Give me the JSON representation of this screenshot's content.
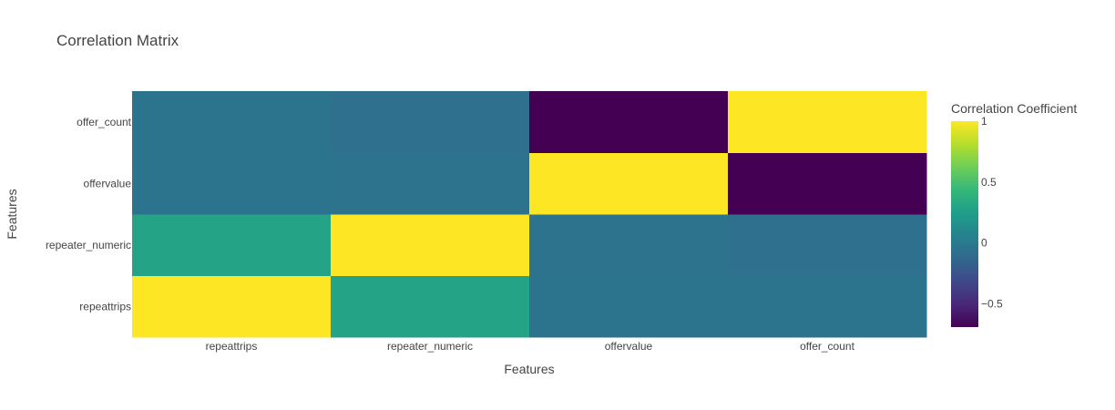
{
  "chart_data": {
    "type": "heatmap",
    "title": "Correlation Matrix",
    "xlabel": "Features",
    "ylabel": "Features",
    "x_categories": [
      "repeattrips",
      "repeater_numeric",
      "offervalue",
      "offer_count"
    ],
    "y_categories": [
      "repeattrips",
      "repeater_numeric",
      "offervalue",
      "offer_count"
    ],
    "z": [
      [
        1.0,
        0.29,
        -0.04,
        -0.04
      ],
      [
        0.29,
        1.0,
        -0.05,
        -0.07
      ],
      [
        -0.04,
        -0.05,
        1.0,
        -0.69
      ],
      [
        -0.04,
        -0.07,
        -0.69,
        1.0
      ]
    ],
    "colorscale": "Viridis",
    "zmin": -0.69,
    "zmax": 1.0,
    "colorbar": {
      "title": "Correlation Coefficient",
      "ticks": [
        1,
        0.5,
        0,
        -0.5
      ],
      "tick_labels": [
        "1",
        "0.5",
        "0",
        "−0.5"
      ]
    }
  }
}
